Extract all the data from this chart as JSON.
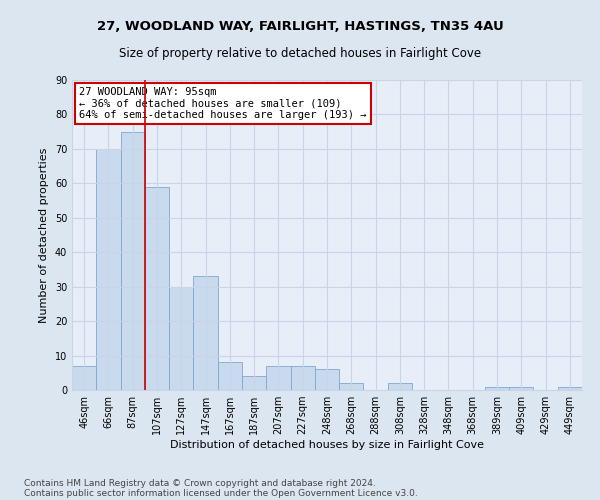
{
  "title1": "27, WOODLAND WAY, FAIRLIGHT, HASTINGS, TN35 4AU",
  "title2": "Size of property relative to detached houses in Fairlight Cove",
  "xlabel": "Distribution of detached houses by size in Fairlight Cove",
  "ylabel": "Number of detached properties",
  "footer1": "Contains HM Land Registry data © Crown copyright and database right 2024.",
  "footer2": "Contains public sector information licensed under the Open Government Licence v3.0.",
  "annotation_line1": "27 WOODLAND WAY: 95sqm",
  "annotation_line2": "← 36% of detached houses are smaller (109)",
  "annotation_line3": "64% of semi-detached houses are larger (193) →",
  "bar_labels": [
    "46sqm",
    "66sqm",
    "87sqm",
    "107sqm",
    "127sqm",
    "147sqm",
    "167sqm",
    "187sqm",
    "207sqm",
    "227sqm",
    "248sqm",
    "268sqm",
    "288sqm",
    "308sqm",
    "328sqm",
    "348sqm",
    "368sqm",
    "389sqm",
    "409sqm",
    "429sqm",
    "449sqm"
  ],
  "bar_values": [
    7,
    70,
    75,
    59,
    30,
    33,
    8,
    4,
    7,
    7,
    6,
    2,
    0,
    2,
    0,
    0,
    0,
    1,
    1,
    0,
    1
  ],
  "bar_color": "#c9d9ee",
  "bar_edge_color": "#7da8d0",
  "red_line_x": 2.5,
  "ylim": [
    0,
    90
  ],
  "yticks": [
    0,
    10,
    20,
    30,
    40,
    50,
    60,
    70,
    80,
    90
  ],
  "bg_color": "#dce6f1",
  "plot_bg_color": "#e8eef8",
  "grid_color": "#c8d4e8",
  "annotation_box_color": "#ffffff",
  "annotation_box_edge": "#cc0000",
  "title1_fontsize": 9.5,
  "title2_fontsize": 8.5,
  "xlabel_fontsize": 8,
  "ylabel_fontsize": 8,
  "tick_fontsize": 7,
  "annotation_fontsize": 7.5,
  "footer_fontsize": 6.5
}
